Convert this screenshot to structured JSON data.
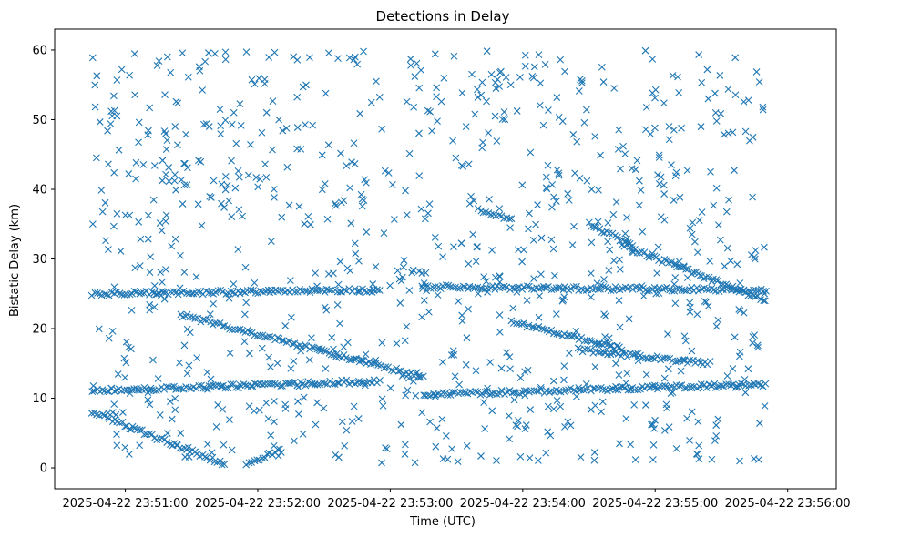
{
  "chart_data": {
    "type": "scatter",
    "title": "Detections in Delay",
    "xlabel": "Time (UTC)",
    "ylabel": "Bistatic Delay (km)",
    "marker": "x",
    "color": "#1f77b4",
    "x_unit": "seconds after 2025-04-22 23:50:45",
    "xlim_seconds": [
      -17,
      337
    ],
    "ylim": [
      -3,
      63
    ],
    "x_ticks": [
      {
        "seconds": 15,
        "label": "2025-04-22 23:51:00"
      },
      {
        "seconds": 75,
        "label": "2025-04-22 23:52:00"
      },
      {
        "seconds": 135,
        "label": "2025-04-22 23:53:00"
      },
      {
        "seconds": 195,
        "label": "2025-04-22 23:54:00"
      },
      {
        "seconds": 255,
        "label": "2025-04-22 23:55:00"
      },
      {
        "seconds": 315,
        "label": "2025-04-22 23:56:00"
      }
    ],
    "y_ticks": [
      0,
      10,
      20,
      30,
      40,
      50,
      60
    ],
    "grid": false,
    "x_range_seconds": [
      0,
      305
    ],
    "tracks": [
      {
        "t0": 0,
        "t1": 60,
        "y0": 8,
        "y1": 0.5
      },
      {
        "t0": 70,
        "t1": 85,
        "y0": 0.5,
        "y1": 2.5
      },
      {
        "t0": 40,
        "t1": 150,
        "y0": 22,
        "y1": 13
      },
      {
        "t0": 0,
        "t1": 130,
        "y0": 25,
        "y1": 25.5
      },
      {
        "t0": 0,
        "t1": 130,
        "y0": 11,
        "y1": 12.5
      },
      {
        "t0": 150,
        "t1": 305,
        "y0": 26,
        "y1": 25.5
      },
      {
        "t0": 150,
        "t1": 305,
        "y0": 10.5,
        "y1": 12
      },
      {
        "t0": 190,
        "t1": 240,
        "y0": 21,
        "y1": 17
      },
      {
        "t0": 220,
        "t1": 280,
        "y0": 17,
        "y1": 15
      },
      {
        "t0": 240,
        "t1": 305,
        "y0": 32,
        "y1": 24
      },
      {
        "t0": 225,
        "t1": 245,
        "y0": 35,
        "y1": 32
      },
      {
        "t0": 175,
        "t1": 190,
        "y0": 37,
        "y1": 35.5
      }
    ],
    "noise_count": 900,
    "noise_seed": 42
  }
}
